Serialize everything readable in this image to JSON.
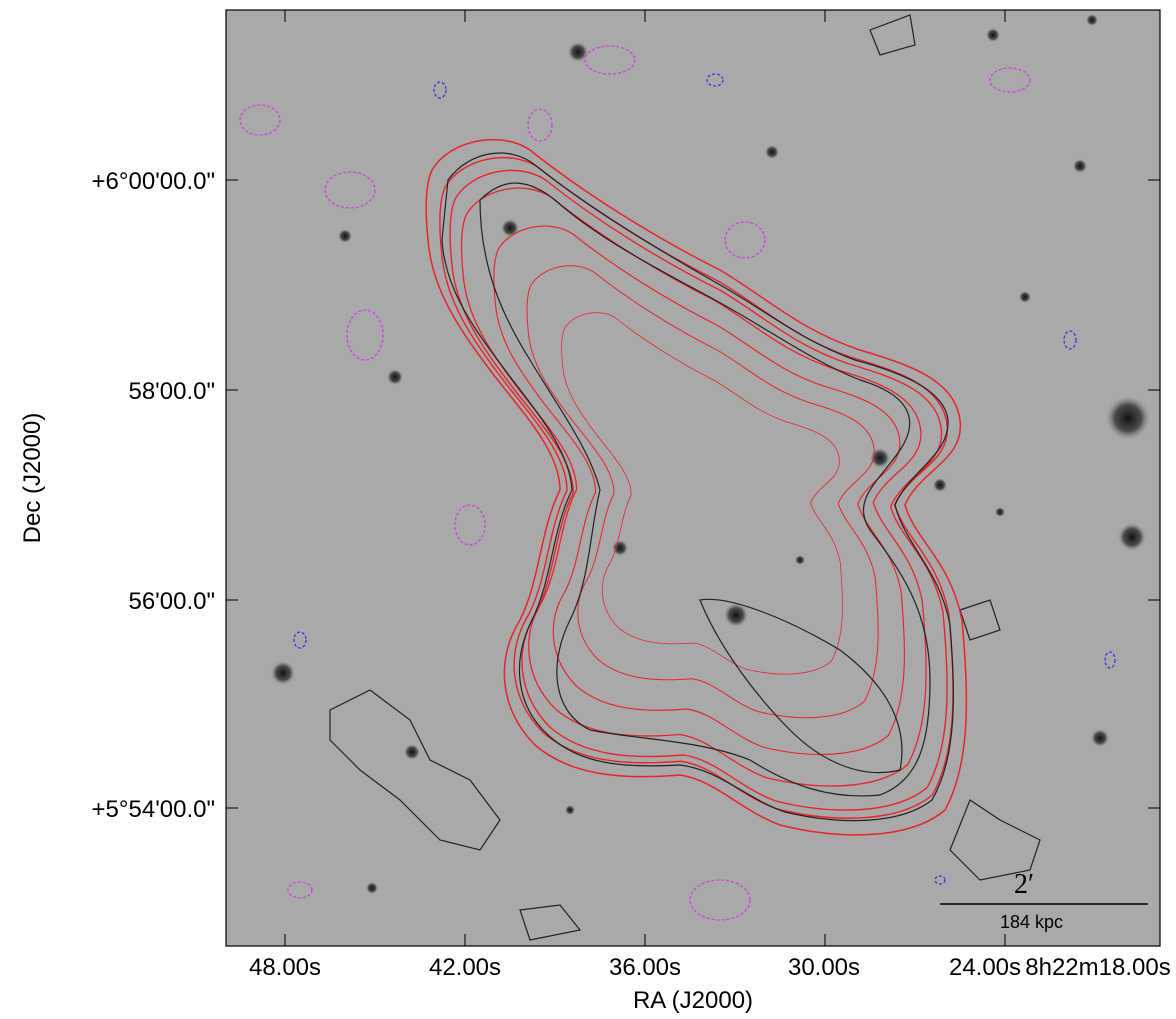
{
  "axes": {
    "x_label": "RA (J2000)",
    "y_label": "Dec (J2000)",
    "x_ticks": [
      "48.00s",
      "42.00s",
      "36.00s",
      "30.00s",
      "24.00s",
      "8h22m18.00s"
    ],
    "y_ticks": [
      "+6°00'00.0\"",
      "58'00.0\"",
      "56'00.0\"",
      "+5°54'00.0\""
    ]
  },
  "scale_bar": {
    "angle": "2′",
    "length": "184 kpc"
  }
}
